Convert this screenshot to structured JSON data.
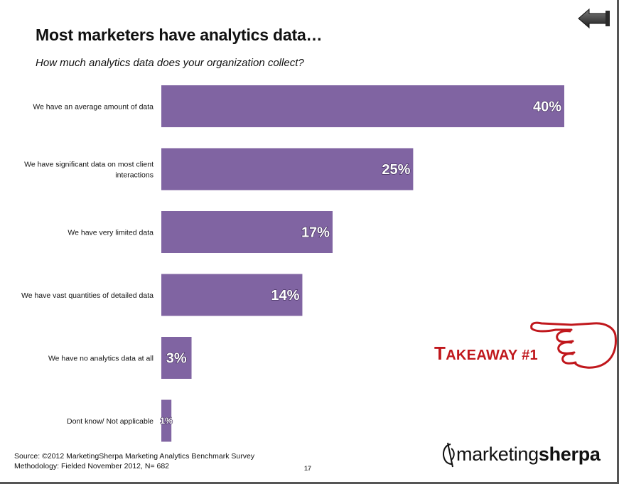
{
  "header": {
    "title": "Most marketers have analytics data…",
    "subtitle": "How much analytics data does your organization collect?"
  },
  "icons": {
    "back": "back-arrow-icon",
    "hand": "pointing-hand-icon"
  },
  "colors": {
    "bar": "#8064a2",
    "takeaway": "#c0171c"
  },
  "takeaway": {
    "first_letter": "T",
    "rest": "AKEAWAY #1"
  },
  "footer": {
    "source_line": "Source: ©2012 MarketingSherpa Marketing Analytics Benchmark Survey",
    "methodology_line": "Methodology: Fielded November 2012, N= 682",
    "page_number": "17"
  },
  "logo": {
    "part1": "marketing",
    "part2": "sherpa"
  },
  "chart_data": {
    "type": "bar",
    "orientation": "horizontal",
    "title": "Most marketers have analytics data…",
    "subtitle": "How much analytics data does your organization collect?",
    "categories": [
      [
        "We have an average amount of data"
      ],
      [
        "We have significant data on most client",
        "interactions"
      ],
      [
        "We have very limited data"
      ],
      [
        "We have vast quantities of detailed data"
      ],
      [
        "We have no analytics data at all"
      ],
      [
        "Dont know/ Not applicable"
      ]
    ],
    "values": [
      40,
      25,
      17,
      14,
      3,
      1
    ],
    "value_labels": [
      "40%",
      "25%",
      "17%",
      "14%",
      "3%",
      "1%"
    ],
    "xlim": [
      0,
      40
    ],
    "grid": false,
    "legend": "none"
  }
}
